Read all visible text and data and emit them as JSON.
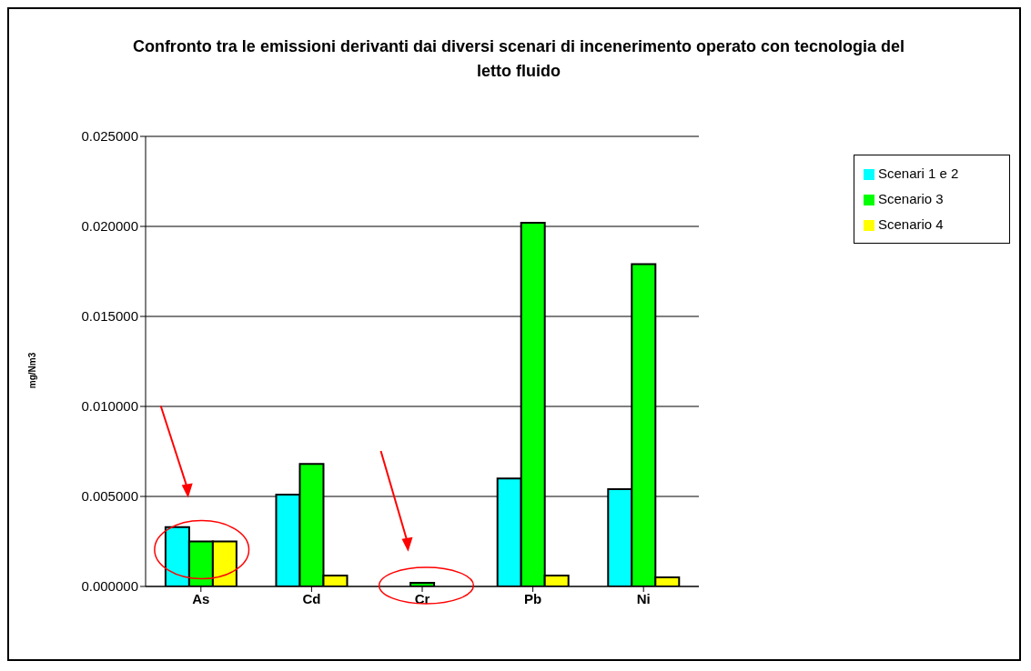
{
  "chart_data": {
    "type": "bar",
    "title": "Confronto tra le emissioni derivanti dai diversi scenari di incenerimento operato con tecnologia del letto fluido",
    "ylabel": "mg/Nm3",
    "categories": [
      "As",
      "Cd",
      "Cr",
      "Pb",
      "Ni"
    ],
    "series": [
      {
        "name": "Scenari 1 e 2",
        "color": "#00ffff",
        "values": [
          0.0033,
          0.0051,
          0.0,
          0.006,
          0.0054
        ]
      },
      {
        "name": "Scenario 3",
        "color": "#00ff00",
        "values": [
          0.0025,
          0.0068,
          0.0002,
          0.0202,
          0.0179
        ]
      },
      {
        "name": "Scenario 4",
        "color": "#ffff00",
        "values": [
          0.0025,
          0.0006,
          0.0,
          0.0006,
          0.0005
        ]
      }
    ],
    "ylim": [
      0,
      0.025
    ],
    "yticks": [
      {
        "value": 0,
        "label": "0.000000"
      },
      {
        "value": 0.005,
        "label": "0.005000"
      },
      {
        "value": 0.01,
        "label": "0.010000"
      },
      {
        "value": 0.015,
        "label": "0.015000"
      },
      {
        "value": 0.02,
        "label": "0.020000"
      },
      {
        "value": 0.025,
        "label": "0.025000"
      }
    ],
    "grid": "y",
    "legend": "top right"
  }
}
